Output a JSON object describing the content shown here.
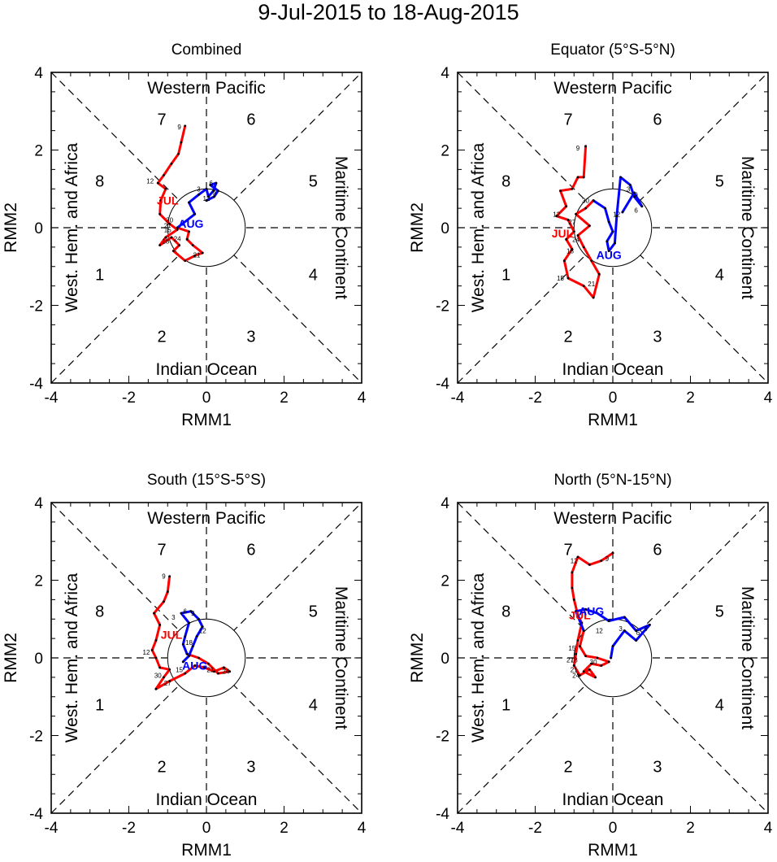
{
  "title": "9-Jul-2015 to 18-Aug-2015",
  "colors": {
    "jul": "#ff0000",
    "aug": "#0000ff",
    "frame": "#000000"
  },
  "chart_data": [
    {
      "type": "line",
      "title": "Combined",
      "xlabel": "RMM1",
      "ylabel": "RMM2",
      "xlim": [
        -4,
        4
      ],
      "ylim": [
        -4,
        4
      ],
      "xticks": [
        "-4",
        "-2",
        "0",
        "2",
        "4"
      ],
      "yticks": [
        "-4",
        "-2",
        "0",
        "2",
        "4"
      ],
      "regions": {
        "top": "Western Pacific",
        "bottom": "Indian Ocean",
        "left": "West. Hem. and Africa",
        "right": "Maritime Continent"
      },
      "phases": [
        "1",
        "2",
        "3",
        "4",
        "5",
        "6",
        "7",
        "8"
      ],
      "month_labels": [
        {
          "text": "JUL",
          "x": -1.0,
          "y": 0.7,
          "series": "jul"
        },
        {
          "text": "AUG",
          "x": -0.4,
          "y": 0.1,
          "series": "aug"
        }
      ],
      "series": [
        {
          "name": "jul",
          "points": [
            [
              -0.55,
              2.62
            ],
            [
              -0.65,
              2.2
            ],
            [
              -0.72,
              1.9
            ],
            [
              -0.9,
              1.65
            ],
            [
              -1.1,
              1.35
            ],
            [
              -1.25,
              1.15
            ],
            [
              -1.05,
              1.0
            ],
            [
              -1.18,
              0.7
            ],
            [
              -1.2,
              0.35
            ],
            [
              -0.95,
              0.1
            ],
            [
              -0.75,
              -0.05
            ],
            [
              -1.05,
              -0.25
            ],
            [
              -1.2,
              -0.45
            ],
            [
              -0.9,
              -0.25
            ],
            [
              -0.7,
              -0.45
            ],
            [
              -0.85,
              -0.6
            ],
            [
              -0.55,
              -0.85
            ],
            [
              -0.3,
              -0.72
            ],
            [
              -0.1,
              -0.65
            ],
            [
              -0.35,
              -0.45
            ],
            [
              -0.5,
              -0.3
            ],
            [
              -0.45,
              -0.1
            ],
            [
              -0.75,
              0.0
            ]
          ]
        },
        {
          "name": "aug",
          "points": [
            [
              -0.75,
              0.0
            ],
            [
              -0.3,
              0.35
            ],
            [
              -0.45,
              0.65
            ],
            [
              -0.2,
              0.85
            ],
            [
              0.0,
              1.0
            ],
            [
              0.05,
              0.8
            ],
            [
              0.18,
              0.95
            ],
            [
              0.25,
              1.15
            ],
            [
              0.1,
              1.1
            ],
            [
              0.3,
              0.95
            ],
            [
              0.2,
              0.8
            ],
            [
              0.0,
              0.7
            ]
          ]
        }
      ],
      "day_labels": [
        {
          "text": "9",
          "x": -0.7,
          "y": 2.6
        },
        {
          "text": "12",
          "x": -1.45,
          "y": 1.2
        },
        {
          "text": "15",
          "x": -1.0,
          "y": -0.05
        },
        {
          "text": "18",
          "x": -1.05,
          "y": -0.35
        },
        {
          "text": "21",
          "x": -0.25,
          "y": -0.7
        },
        {
          "text": "24",
          "x": -0.75,
          "y": -0.28
        },
        {
          "text": "27",
          "x": -1.0,
          "y": 0.05
        },
        {
          "text": "30",
          "x": -0.95,
          "y": 0.2
        },
        {
          "text": "3",
          "x": -0.2,
          "y": 1.0
        },
        {
          "text": "6",
          "x": 0.12,
          "y": 1.15
        },
        {
          "text": "9",
          "x": 0.2,
          "y": 0.9
        },
        {
          "text": "12",
          "x": 0.0,
          "y": 0.75
        }
      ]
    },
    {
      "type": "line",
      "title": "Equator (5°S-5°N)",
      "xlabel": "RMM1",
      "ylabel": "RMM2",
      "xlim": [
        -4,
        4
      ],
      "ylim": [
        -4,
        4
      ],
      "xticks": [
        "-4",
        "-2",
        "0",
        "2",
        "4"
      ],
      "yticks": [
        "-4",
        "-2",
        "0",
        "2",
        "4"
      ],
      "regions": {
        "top": "Western Pacific",
        "bottom": "Indian Ocean",
        "left": "West. Hem. and Africa",
        "right": "Maritime Continent"
      },
      "phases": [
        "1",
        "2",
        "3",
        "4",
        "5",
        "6",
        "7",
        "8"
      ],
      "month_labels": [
        {
          "text": "JUL",
          "x": -1.3,
          "y": -0.15,
          "series": "jul"
        },
        {
          "text": "AUG",
          "x": -0.1,
          "y": -0.7,
          "series": "aug"
        }
      ],
      "series": [
        {
          "name": "jul",
          "points": [
            [
              -0.7,
              2.1
            ],
            [
              -0.75,
              1.3
            ],
            [
              -0.9,
              1.3
            ],
            [
              -1.05,
              1.0
            ],
            [
              -1.35,
              0.95
            ],
            [
              -1.2,
              0.55
            ],
            [
              -1.45,
              0.3
            ],
            [
              -1.15,
              0.2
            ],
            [
              -1.0,
              -0.1
            ],
            [
              -1.2,
              -0.3
            ],
            [
              -1.05,
              -0.55
            ],
            [
              -1.25,
              -0.85
            ],
            [
              -1.15,
              -1.3
            ],
            [
              -0.75,
              -1.5
            ],
            [
              -0.5,
              -1.8
            ],
            [
              -0.35,
              -1.2
            ],
            [
              -0.55,
              -0.85
            ],
            [
              -0.75,
              -0.5
            ],
            [
              -0.9,
              -0.2
            ],
            [
              -0.6,
              0.05
            ],
            [
              -0.95,
              0.35
            ],
            [
              -0.7,
              0.5
            ],
            [
              -0.5,
              0.7
            ]
          ]
        },
        {
          "name": "aug",
          "points": [
            [
              -0.5,
              0.7
            ],
            [
              -0.2,
              0.5
            ],
            [
              -0.1,
              0.15
            ],
            [
              0.0,
              -0.1
            ],
            [
              -0.15,
              -0.35
            ],
            [
              -0.1,
              -0.6
            ],
            [
              0.05,
              -0.4
            ],
            [
              0.1,
              0.3
            ],
            [
              0.2,
              1.3
            ],
            [
              0.45,
              1.1
            ],
            [
              0.55,
              0.8
            ],
            [
              0.75,
              0.55
            ],
            [
              0.55,
              0.9
            ],
            [
              0.25,
              0.4
            ]
          ]
        }
      ],
      "day_labels": [
        {
          "text": "9",
          "x": -0.9,
          "y": 2.05
        },
        {
          "text": "12",
          "x": -1.45,
          "y": 0.35
        },
        {
          "text": "15",
          "x": -1.35,
          "y": -1.3
        },
        {
          "text": "18",
          "x": -1.1,
          "y": -0.6
        },
        {
          "text": "21",
          "x": -0.55,
          "y": -1.45
        },
        {
          "text": "24",
          "x": -0.95,
          "y": -0.3
        },
        {
          "text": "27",
          "x": -1.05,
          "y": 0.15
        },
        {
          "text": "30",
          "x": -0.7,
          "y": 0.7
        },
        {
          "text": "3",
          "x": 0.4,
          "y": 1.0
        },
        {
          "text": "6",
          "x": 0.6,
          "y": 0.45
        },
        {
          "text": "9",
          "x": 0.6,
          "y": 0.85
        },
        {
          "text": "12",
          "x": 0.1,
          "y": 0.35
        }
      ]
    },
    {
      "type": "line",
      "title": "South (15°S-5°S)",
      "xlabel": "RMM1",
      "ylabel": "RMM2",
      "xlim": [
        -4,
        4
      ],
      "ylim": [
        -4,
        4
      ],
      "xticks": [
        "-4",
        "-2",
        "0",
        "2",
        "4"
      ],
      "yticks": [
        "-4",
        "-2",
        "0",
        "2",
        "4"
      ],
      "regions": {
        "top": "Western Pacific",
        "bottom": "Indian Ocean",
        "left": "West. Hem. and Africa",
        "right": "Maritime Continent"
      },
      "phases": [
        "1",
        "2",
        "3",
        "4",
        "5",
        "6",
        "7",
        "8"
      ],
      "month_labels": [
        {
          "text": "JUL",
          "x": -0.9,
          "y": 0.6,
          "series": "jul"
        },
        {
          "text": "AUG",
          "x": -0.3,
          "y": -0.2,
          "series": "aug"
        }
      ],
      "series": [
        {
          "name": "jul",
          "points": [
            [
              -0.95,
              2.1
            ],
            [
              -1.0,
              1.7
            ],
            [
              -1.1,
              1.45
            ],
            [
              -1.35,
              1.15
            ],
            [
              -1.2,
              0.85
            ],
            [
              -1.3,
              0.45
            ],
            [
              -1.4,
              0.2
            ],
            [
              -1.3,
              0.0
            ],
            [
              -1.2,
              -0.25
            ],
            [
              -0.95,
              -0.3
            ],
            [
              -1.1,
              -0.5
            ],
            [
              -1.3,
              -0.8
            ],
            [
              -0.95,
              -0.6
            ],
            [
              -0.55,
              -0.4
            ],
            [
              -0.3,
              -0.2
            ],
            [
              -0.05,
              -0.25
            ],
            [
              0.2,
              -0.35
            ],
            [
              0.45,
              -0.25
            ],
            [
              0.6,
              -0.35
            ],
            [
              0.3,
              -0.4
            ],
            [
              0.05,
              -0.15
            ],
            [
              -0.2,
              0.0
            ],
            [
              -0.5,
              0.1
            ]
          ]
        },
        {
          "name": "aug",
          "points": [
            [
              -0.5,
              0.1
            ],
            [
              -0.6,
              0.35
            ],
            [
              -0.55,
              0.55
            ],
            [
              -0.45,
              0.9
            ],
            [
              -0.65,
              1.15
            ],
            [
              -0.4,
              1.2
            ],
            [
              -0.2,
              1.0
            ],
            [
              -0.1,
              0.8
            ],
            [
              -0.25,
              0.55
            ],
            [
              -0.35,
              0.3
            ],
            [
              -0.45,
              0.05
            ],
            [
              -0.6,
              -0.1
            ]
          ]
        }
      ],
      "day_labels": [
        {
          "text": "9",
          "x": -1.1,
          "y": 2.1
        },
        {
          "text": "12",
          "x": -1.55,
          "y": 0.15
        },
        {
          "text": "15",
          "x": -0.7,
          "y": -0.3
        },
        {
          "text": "18",
          "x": -0.45,
          "y": 0.4
        },
        {
          "text": "21",
          "x": 0.1,
          "y": -0.3
        },
        {
          "text": "24",
          "x": 0.5,
          "y": -0.35
        },
        {
          "text": "27",
          "x": -1.0,
          "y": -0.65
        },
        {
          "text": "30",
          "x": -1.25,
          "y": -0.45
        },
        {
          "text": "3",
          "x": -0.85,
          "y": 1.05
        },
        {
          "text": "6",
          "x": -0.55,
          "y": 1.2
        },
        {
          "text": "9",
          "x": -0.35,
          "y": 1.15
        },
        {
          "text": "12",
          "x": -0.1,
          "y": 0.7
        }
      ]
    },
    {
      "type": "line",
      "title": "North (5°N-15°N)",
      "xlabel": "RMM1",
      "ylabel": "RMM2",
      "xlim": [
        -4,
        4
      ],
      "ylim": [
        -4,
        4
      ],
      "xticks": [
        "-4",
        "-2",
        "0",
        "2",
        "4"
      ],
      "yticks": [
        "-4",
        "-2",
        "0",
        "2",
        "4"
      ],
      "regions": {
        "top": "Western Pacific",
        "bottom": "Indian Ocean",
        "left": "West. Hem. and Africa",
        "right": "Maritime Continent"
      },
      "phases": [
        "1",
        "2",
        "3",
        "4",
        "5",
        "6",
        "7",
        "8"
      ],
      "month_labels": [
        {
          "text": "JUL",
          "x": -0.85,
          "y": 1.1,
          "series": "jul"
        },
        {
          "text": "AUG",
          "x": -0.55,
          "y": 1.2,
          "series": "aug"
        }
      ],
      "series": [
        {
          "name": "jul",
          "points": [
            [
              0.0,
              2.7
            ],
            [
              -0.3,
              2.5
            ],
            [
              -0.6,
              2.4
            ],
            [
              -0.9,
              2.6
            ],
            [
              -1.05,
              2.2
            ],
            [
              -1.05,
              1.8
            ],
            [
              -1.0,
              1.5
            ],
            [
              -0.9,
              1.1
            ],
            [
              -0.8,
              0.9
            ],
            [
              -0.9,
              0.45
            ],
            [
              -0.95,
              0.1
            ],
            [
              -1.0,
              -0.2
            ],
            [
              -0.85,
              -0.45
            ],
            [
              -0.6,
              -0.3
            ],
            [
              -0.45,
              -0.5
            ],
            [
              -0.75,
              -0.35
            ],
            [
              -0.55,
              -0.15
            ],
            [
              -0.3,
              -0.2
            ],
            [
              -0.1,
              -0.1
            ],
            [
              -0.4,
              0.0
            ],
            [
              -0.7,
              0.05
            ],
            [
              -0.85,
              0.3
            ],
            [
              -0.75,
              0.7
            ]
          ]
        },
        {
          "name": "aug",
          "points": [
            [
              -0.75,
              0.7
            ],
            [
              -0.95,
              1.2
            ],
            [
              -0.7,
              1.25
            ],
            [
              -0.4,
              1.15
            ],
            [
              -0.1,
              0.95
            ],
            [
              0.3,
              1.05
            ],
            [
              0.6,
              0.7
            ],
            [
              0.95,
              0.85
            ],
            [
              0.6,
              0.45
            ],
            [
              0.3,
              0.7
            ],
            [
              0.0,
              0.3
            ],
            [
              -0.05,
              0.0
            ]
          ]
        }
      ],
      "day_labels": [
        {
          "text": "9",
          "x": -0.15,
          "y": 2.55
        },
        {
          "text": "12",
          "x": -1.0,
          "y": 2.5
        },
        {
          "text": "15",
          "x": -1.05,
          "y": 0.25
        },
        {
          "text": "18",
          "x": -1.0,
          "y": -0.05
        },
        {
          "text": "21",
          "x": -1.0,
          "y": -0.3
        },
        {
          "text": "24",
          "x": -0.95,
          "y": -0.45
        },
        {
          "text": "27",
          "x": -1.1,
          "y": -0.05
        },
        {
          "text": "30",
          "x": -0.5,
          "y": -0.1
        },
        {
          "text": "3",
          "x": 0.2,
          "y": 0.75
        },
        {
          "text": "6",
          "x": 0.65,
          "y": 0.65
        },
        {
          "text": "9",
          "x": 0.85,
          "y": 0.75
        },
        {
          "text": "12",
          "x": -0.35,
          "y": 0.7
        }
      ]
    }
  ]
}
